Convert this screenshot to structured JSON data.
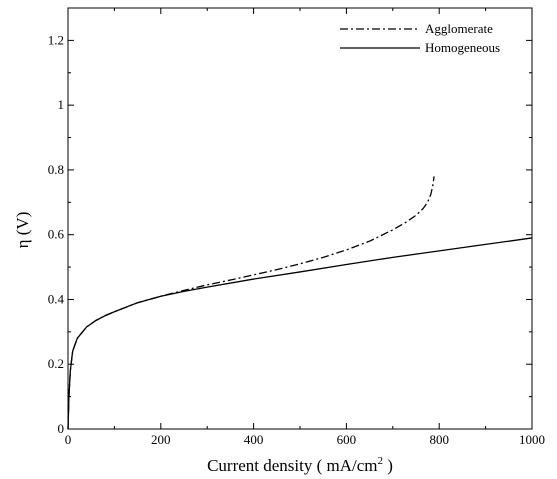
{
  "chart_data": {
    "type": "line",
    "xlabel": "Current density ( mA/cm",
    "xlabel_sup": "2",
    "xlabel_end": " )",
    "ylabel": "η (V)",
    "xlim": [
      0,
      1000
    ],
    "ylim": [
      0,
      1.3
    ],
    "xticks": [
      0,
      200,
      400,
      600,
      800,
      1000
    ],
    "yticks": [
      0,
      0.2,
      0.4,
      0.6,
      0.8,
      1,
      1.2
    ],
    "xtick_labels": [
      "0",
      "200",
      "400",
      "600",
      "800",
      "1000"
    ],
    "ytick_labels": [
      "0",
      "0.2",
      "0.4",
      "0.6",
      "0.8",
      "1",
      "1.2"
    ],
    "grid": false,
    "legend_position": "top-right",
    "series": [
      {
        "name": "Agglomerate",
        "style": "dash-dot",
        "color": "#000000",
        "x": [
          0,
          2,
          5,
          10,
          20,
          40,
          60,
          80,
          100,
          150,
          200,
          250,
          300,
          350,
          400,
          450,
          500,
          550,
          600,
          650,
          700,
          730,
          750,
          765,
          775,
          782,
          786,
          789
        ],
        "y": [
          0.0,
          0.1,
          0.18,
          0.24,
          0.28,
          0.315,
          0.335,
          0.35,
          0.362,
          0.39,
          0.41,
          0.428,
          0.445,
          0.46,
          0.476,
          0.492,
          0.51,
          0.53,
          0.553,
          0.58,
          0.615,
          0.64,
          0.66,
          0.68,
          0.7,
          0.725,
          0.75,
          0.78
        ]
      },
      {
        "name": "Homogeneous",
        "style": "solid",
        "color": "#000000",
        "x": [
          0,
          2,
          5,
          10,
          20,
          40,
          60,
          80,
          100,
          150,
          200,
          250,
          300,
          400,
          500,
          600,
          700,
          800,
          900,
          1000
        ],
        "y": [
          0.0,
          0.1,
          0.18,
          0.24,
          0.28,
          0.315,
          0.335,
          0.35,
          0.362,
          0.39,
          0.41,
          0.425,
          0.438,
          0.463,
          0.485,
          0.508,
          0.53,
          0.55,
          0.57,
          0.59
        ]
      }
    ]
  }
}
